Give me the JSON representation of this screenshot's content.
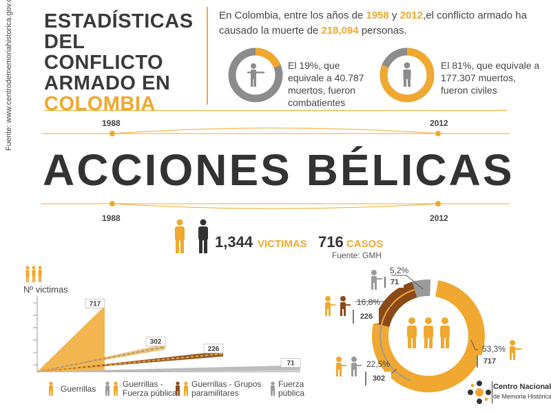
{
  "source": "Fuente: www.centrodememoriahistorica.gov.co",
  "title": {
    "line1": "ESTADÍSTICAS",
    "line2": "DEL CONFLICTO",
    "line3": "ARMADO EN",
    "line4": "COLOMBIA"
  },
  "intro": {
    "part1": "En Colombia, entre los años de ",
    "year1": "1958",
    "part2": " y ",
    "year2": "2012",
    "part3": ",el conflicto armado ha causado la muerte de ",
    "deaths": "218,094",
    "part4": " personas."
  },
  "stats": [
    {
      "text": "El 19%, que equivale a 40.787 muertos, fueron combatientes",
      "percent": 19
    },
    {
      "text": "El 81%, que equivale a 177.307 muertos, fueron civiles",
      "percent": 81
    }
  ],
  "timeline": {
    "top_start": "1988",
    "top_end": "2012",
    "bottom_start": "1988",
    "bottom_end": "2012"
  },
  "headline": "ACCIONES BÉLICAS",
  "totals": {
    "victims_value": "1,344",
    "victims_label": "VICTIMAS",
    "cases_value": "716",
    "cases_label": "CASOS",
    "source": "Fuente: GMH"
  },
  "colors": {
    "accent": "#f0a830",
    "dark": "#3a3a3a",
    "brown": "#8a4a18",
    "gray": "#9a9a9a"
  },
  "chart_data": [
    {
      "type": "area",
      "ylabel": "Nº victimas",
      "series": [
        {
          "name": "Guerrillas",
          "value": 717
        },
        {
          "name": "Guerrillas - Fuerza pública",
          "value": 302
        },
        {
          "name": "Guerrillas - Grupos paramilitares",
          "value": 226
        },
        {
          "name": "Fuerza pública",
          "value": 71
        }
      ],
      "legend": [
        {
          "label": "Guerrillas"
        },
        {
          "label": "Guerrillas - Fuerza pública"
        },
        {
          "label": "Guerrillas - Grupos paramilitares"
        },
        {
          "label": "Fuerza pública"
        }
      ]
    },
    {
      "type": "pie",
      "slices": [
        {
          "label": "5,2%",
          "value": 71,
          "percent": 5.2,
          "color": "#9a9a9a"
        },
        {
          "label": "16,8%",
          "value": 226,
          "percent": 16.8,
          "color": "#8a4a18"
        },
        {
          "label": "22,5%",
          "value": 302,
          "percent": 22.5,
          "color": "#f0a830"
        },
        {
          "label": "53,3%",
          "value": 717,
          "percent": 53.3,
          "color": "#f0a830"
        }
      ]
    }
  ],
  "logo": {
    "line1": "Centro Nacional",
    "line2": "de Memoria Histórica"
  }
}
